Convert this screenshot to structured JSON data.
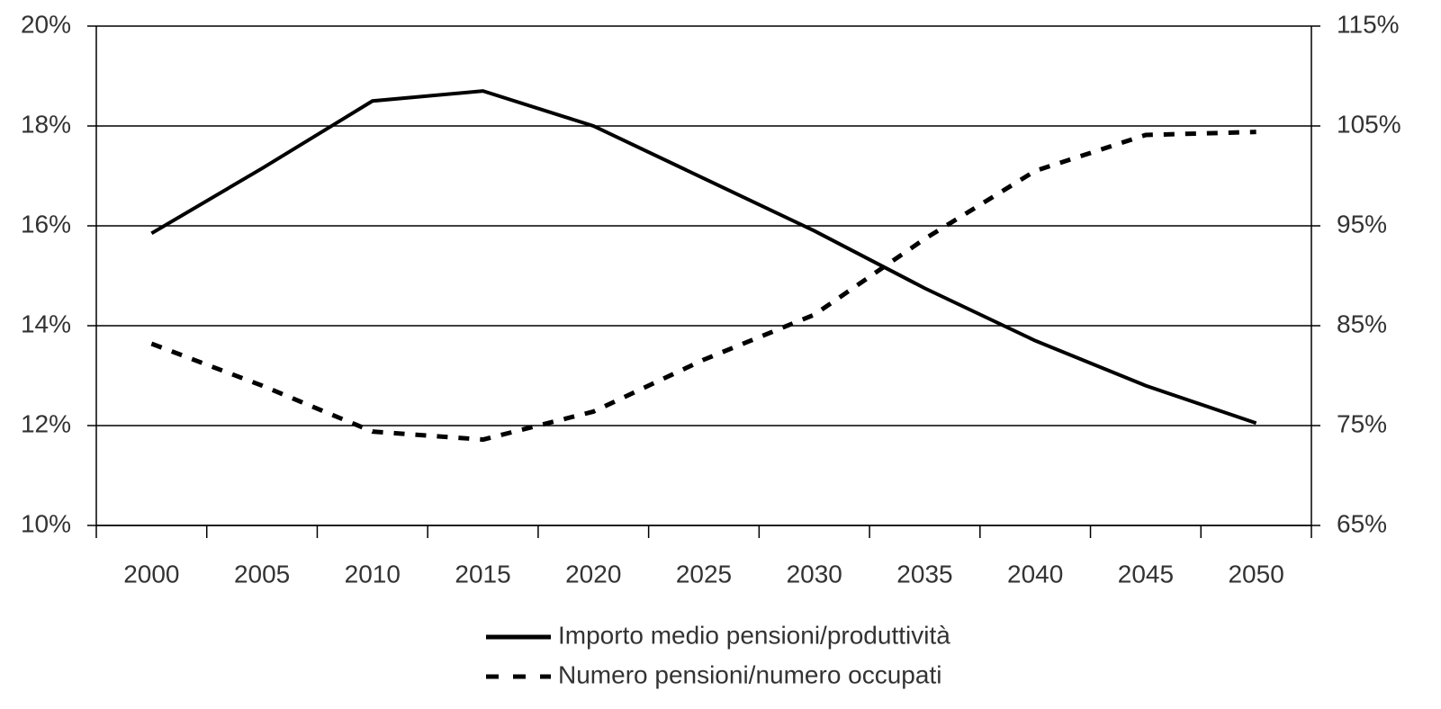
{
  "chart_data": {
    "type": "line",
    "categories": [
      "2000",
      "2005",
      "2010",
      "2015",
      "2020",
      "2025",
      "2030",
      "2035",
      "2040",
      "2045",
      "2050"
    ],
    "series": [
      {
        "name": "Importo medio pensioni/produttività",
        "color": "#000000",
        "style": "solid",
        "values": [
          15.85,
          17.15,
          18.5,
          18.7,
          18.0,
          16.95,
          15.9,
          14.75,
          13.7,
          12.8,
          12.05
        ]
      },
      {
        "name": "Numero pensioni/numero occupati",
        "color": "#000000",
        "style": "dashed",
        "axis": "y2",
        "values": [
          83.2,
          79.0,
          74.4,
          73.6,
          76.4,
          81.6,
          86.1,
          93.7,
          100.5,
          104.1,
          104.4
        ]
      }
    ],
    "ylim": [
      10,
      20
    ],
    "yticks": [
      {
        "value": 10,
        "label": "10%"
      },
      {
        "value": 12,
        "label": "12%"
      },
      {
        "value": 14,
        "label": "14%"
      },
      {
        "value": 16,
        "label": "16%"
      },
      {
        "value": 18,
        "label": "18%"
      },
      {
        "value": 20,
        "label": "20%"
      }
    ],
    "y2lim": [
      65,
      115
    ],
    "y2ticks": [
      {
        "value": 65,
        "label": "65%"
      },
      {
        "value": 75,
        "label": "75%"
      },
      {
        "value": 85,
        "label": "85%"
      },
      {
        "value": 95,
        "label": "95%"
      },
      {
        "value": 105,
        "label": "105%"
      },
      {
        "value": 115,
        "label": "115%"
      }
    ],
    "grid": true
  }
}
